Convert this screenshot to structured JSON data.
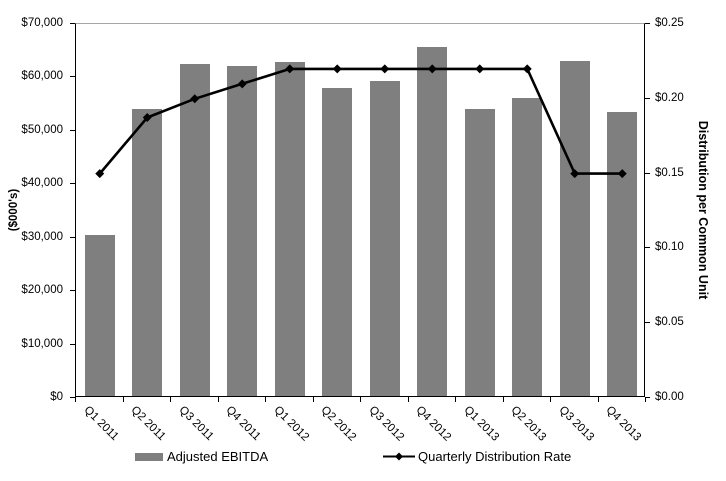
{
  "chart_data": {
    "type": "combo",
    "categories": [
      "Q1 2011",
      "Q2 2011",
      "Q3 2011",
      "Q4 2011",
      "Q1 2012",
      "Q2 2012",
      "Q3 2012",
      "Q4 2012",
      "Q1 2013",
      "Q2 2013",
      "Q3 2013",
      "Q4 2013"
    ],
    "series": [
      {
        "name": "Adjusted EBITDA",
        "type": "bar",
        "axis": "left",
        "values": [
          30200,
          53700,
          62200,
          61800,
          62600,
          57700,
          59000,
          65300,
          53700,
          55800,
          62700,
          53100
        ]
      },
      {
        "name": "Quarterly Distribution Rate",
        "type": "line",
        "axis": "right",
        "values": [
          0.15,
          0.1875,
          0.2,
          0.21,
          0.22,
          0.22,
          0.22,
          0.22,
          0.22,
          0.22,
          0.15,
          0.15
        ]
      }
    ],
    "left_axis": {
      "title": "($000's)",
      "min": 0,
      "max": 70000,
      "ticks": [
        "$70,000",
        "$60,000",
        "$50,000",
        "$40,000",
        "$30,000",
        "$20,000",
        "$10,000",
        "$0"
      ]
    },
    "right_axis": {
      "title": "Distribution per Common Unit",
      "min": 0,
      "max": 0.25,
      "ticks": [
        "$0.25",
        "$0.20",
        "$0.15",
        "$0.10",
        "$0.05",
        "$0.00"
      ]
    },
    "legend_position": "bottom",
    "grid": "top-border-only",
    "plot_background": "#FFFFFF"
  },
  "colors": {
    "bar": "#7F7F7F",
    "line": "#000000",
    "axis": "#000000",
    "top_gridline": "#A6A6A6",
    "text": "#000000"
  }
}
